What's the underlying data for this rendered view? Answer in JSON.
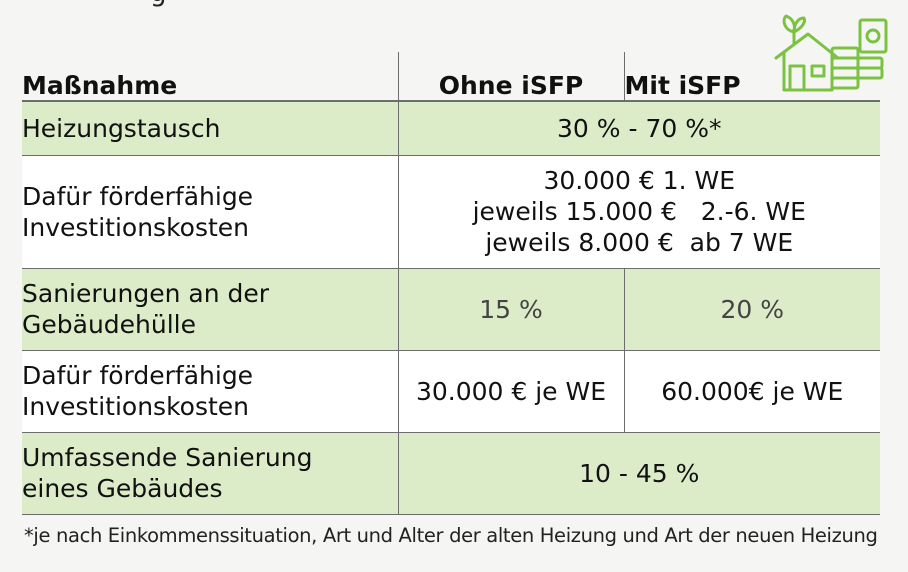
{
  "header": {
    "cut_text": "g"
  },
  "table": {
    "headers": [
      "Maßnahme",
      "Ohne iSFP",
      "Mit iSFP"
    ],
    "rows": [
      {
        "label": [
          "Heizungstausch"
        ],
        "merged": [
          "30 % - 70 %*"
        ]
      },
      {
        "label": [
          "Dafür förderfähige",
          "Investitionskosten"
        ],
        "merged": [
          "30.000 € 1. WE",
          "jeweils 15.000 €   2.-6. WE",
          "jeweils 8.000 €  ab 7 WE"
        ]
      },
      {
        "label": [
          "Sanierungen an der",
          "Gebäudehülle"
        ],
        "ohne": "15 %",
        "mit": "20 %"
      },
      {
        "label": [
          "Dafür förderfähige",
          "Investitionskosten"
        ],
        "ohne": "30.000 € je WE",
        "mit": "60.000€ je WE"
      },
      {
        "label": [
          "Umfassende Sanierung",
          "eines Gebäudes"
        ],
        "merged": [
          "10 - 45 %"
        ]
      }
    ]
  },
  "footnote": "*je nach Einkommenssituation, Art und Alter der alten Heizung und Art der neuen Heizung",
  "colors": {
    "green_row": "#dcebc8",
    "icon_green": "#7cc242",
    "rule": "#6d6d6d"
  },
  "icons": {
    "logo": "house-money-icon"
  }
}
